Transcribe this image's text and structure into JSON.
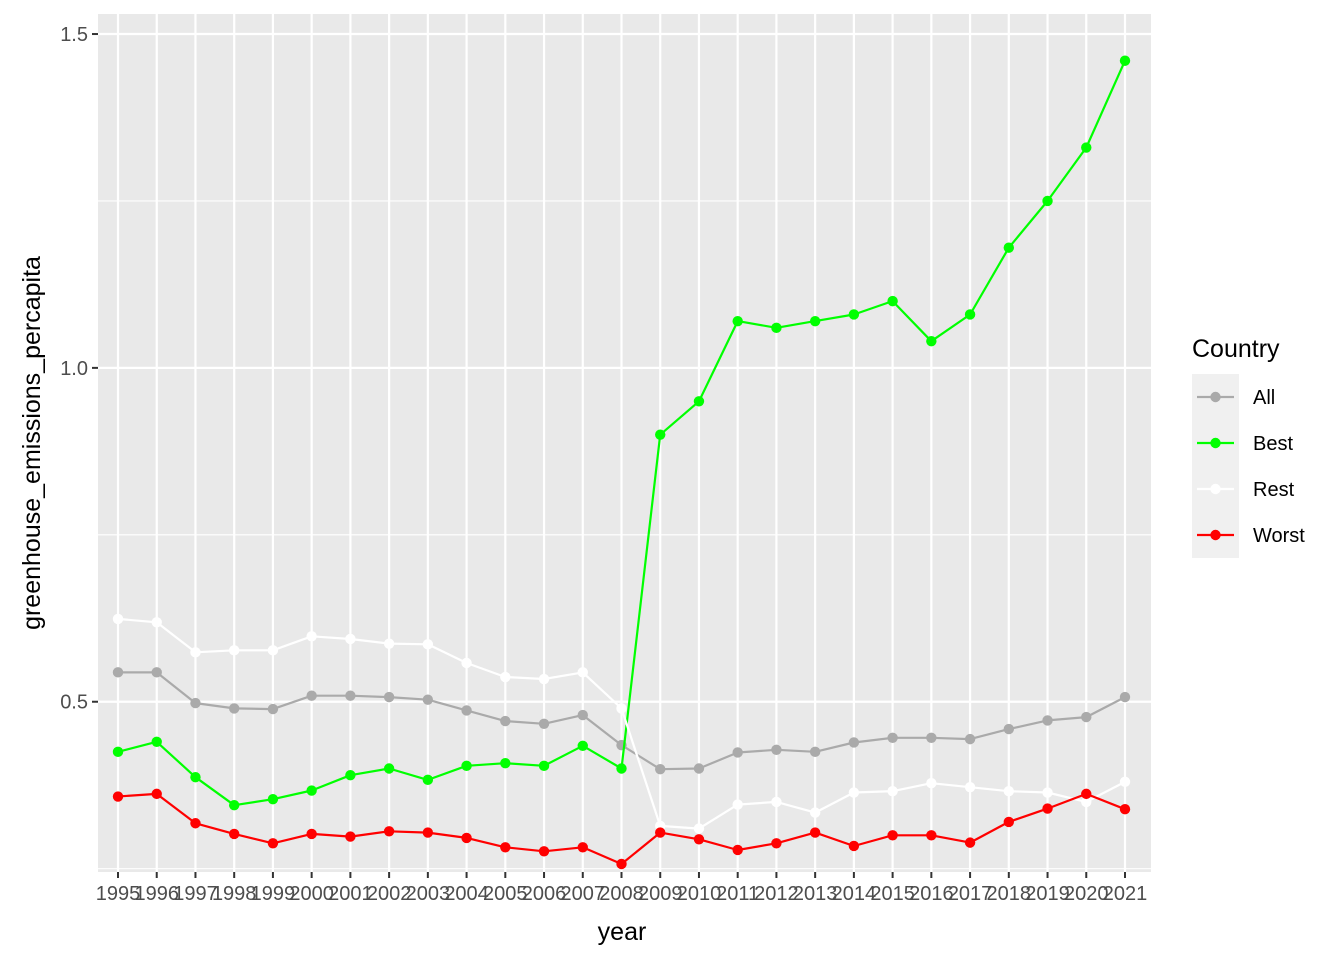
{
  "chart_data": {
    "type": "line",
    "xlabel": "year",
    "ylabel": "greenhouse_emissions_percapita",
    "x": [
      "1995",
      "1996",
      "1997",
      "1998",
      "1999",
      "2000",
      "2001",
      "2002",
      "2003",
      "2004",
      "2005",
      "2006",
      "2007",
      "2008",
      "2009",
      "2010",
      "2011",
      "2012",
      "2013",
      "2014",
      "2015",
      "2016",
      "2017",
      "2018",
      "2019",
      "2020",
      "2021"
    ],
    "y_ticks": [
      "0.5",
      "1.0",
      "1.5"
    ],
    "y_tick_values": [
      0.5,
      1.0,
      1.5
    ],
    "ylim": [
      0.245,
      1.53
    ],
    "grid": true,
    "legend": {
      "title": "Country",
      "position": "right"
    },
    "series": [
      {
        "name": "All",
        "color": "#aaaaaa",
        "values": [
          0.544,
          0.544,
          0.498,
          0.49,
          0.489,
          0.509,
          0.509,
          0.507,
          0.503,
          0.487,
          0.471,
          0.467,
          0.48,
          0.435,
          0.399,
          0.4,
          0.424,
          0.428,
          0.425,
          0.439,
          0.446,
          0.446,
          0.444,
          0.459,
          0.472,
          0.477,
          0.507
        ]
      },
      {
        "name": "Best",
        "color": "#00ff00",
        "values": [
          0.425,
          0.44,
          0.387,
          0.345,
          0.354,
          0.367,
          0.39,
          0.4,
          0.383,
          0.404,
          0.408,
          0.404,
          0.434,
          0.4,
          0.9,
          0.95,
          1.07,
          1.06,
          1.07,
          1.08,
          1.1,
          1.04,
          1.08,
          1.18,
          1.25,
          1.33,
          1.46
        ]
      },
      {
        "name": "Rest",
        "color": "#ffffff",
        "values": [
          0.624,
          0.619,
          0.574,
          0.577,
          0.577,
          0.598,
          0.594,
          0.587,
          0.586,
          0.558,
          0.537,
          0.534,
          0.544,
          0.49,
          0.314,
          0.31,
          0.346,
          0.35,
          0.334,
          0.364,
          0.366,
          0.378,
          0.372,
          0.366,
          0.364,
          0.35,
          0.38
        ]
      },
      {
        "name": "Worst",
        "color": "#ff0000",
        "values": [
          0.358,
          0.362,
          0.318,
          0.302,
          0.288,
          0.302,
          0.298,
          0.306,
          0.304,
          0.296,
          0.282,
          0.276,
          0.282,
          0.257,
          0.304,
          0.294,
          0.278,
          0.288,
          0.304,
          0.284,
          0.3,
          0.3,
          0.289,
          0.32,
          0.34,
          0.362,
          0.339
        ]
      }
    ]
  }
}
